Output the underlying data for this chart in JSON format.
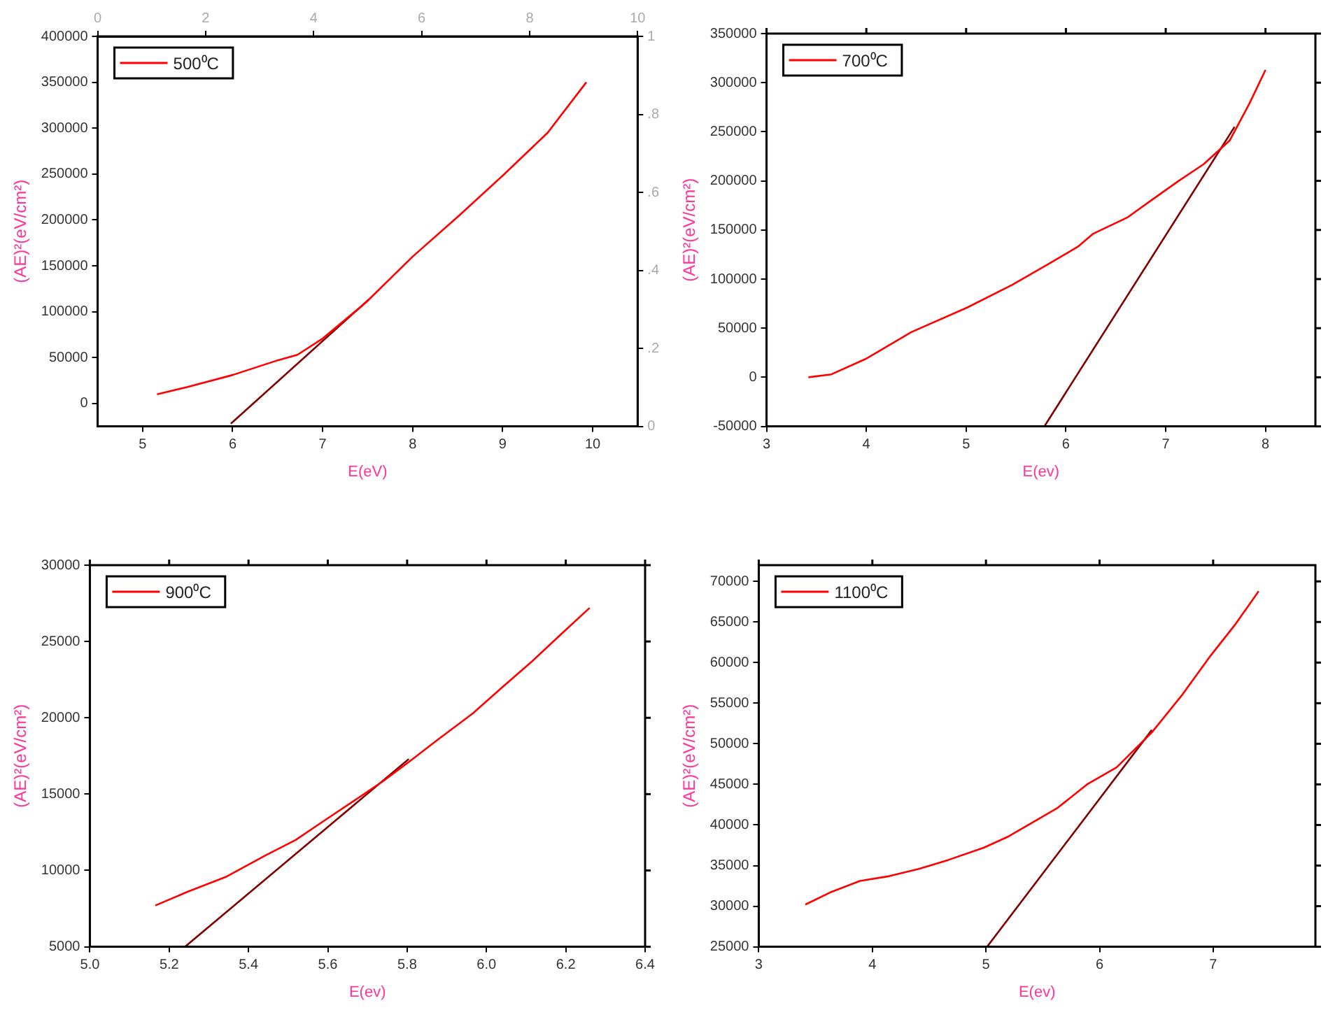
{
  "chart_data": [
    {
      "type": "line",
      "xlabel": "E(eV)",
      "ylabel": "(AE)²(eV/cm²)",
      "legend": "top left",
      "marker": "none",
      "grid": false,
      "xlim": [
        4.5,
        10.5
      ],
      "xticks": [
        5,
        6,
        7,
        8,
        9,
        10
      ],
      "ylim": [
        -25000,
        400000
      ],
      "yticks": [
        0,
        50000,
        100000,
        150000,
        200000,
        250000,
        300000,
        350000,
        400000
      ],
      "x2lim": [
        0,
        10
      ],
      "x2ticks": [
        0,
        2,
        4,
        6,
        8,
        10
      ],
      "y2lim": [
        0,
        1
      ],
      "y2ticks": [
        0,
        {
          "value": 0.2,
          "label": ".2"
        },
        {
          "value": 0.4,
          "label": ".4"
        },
        {
          "value": 0.6,
          "label": ".6"
        },
        {
          "value": 0.8,
          "label": ".8"
        },
        1
      ],
      "series": [
        {
          "name": "500⁰C",
          "color": "#ff0000",
          "x": [
            5.16,
            5.5,
            6.0,
            6.5,
            6.72,
            6.99,
            7.48,
            8.0,
            8.52,
            9.02,
            9.5,
            9.93
          ],
          "values": [
            10000,
            18000,
            31000,
            47000,
            53000,
            70000,
            110000,
            160000,
            205000,
            250000,
            295000,
            350000
          ]
        },
        {
          "color": "#800000",
          "x": [
            5.98,
            7.51
          ],
          "values": [
            -22000,
            113000
          ]
        }
      ]
    },
    {
      "type": "line",
      "xlabel": "E(ev)",
      "ylabel": "(AE)²(eV/cm²)",
      "legend": "top left",
      "marker": "none",
      "grid": false,
      "xlim": [
        3,
        8.5
      ],
      "xticks": [
        3,
        4,
        5,
        6,
        7,
        8
      ],
      "ylim": [
        -50000,
        350000
      ],
      "yticks": [
        -50000,
        0,
        50000,
        100000,
        150000,
        200000,
        250000,
        300000,
        350000
      ],
      "series": [
        {
          "name": "700⁰C",
          "color": "#ff0000",
          "x": [
            3.42,
            3.65,
            4.0,
            4.45,
            5.01,
            5.46,
            5.82,
            6.12,
            6.27,
            6.62,
            6.88,
            7.13,
            7.38,
            7.64,
            7.84,
            8.0
          ],
          "values": [
            0,
            3000,
            19000,
            46000,
            71000,
            94000,
            115000,
            133000,
            146000,
            163000,
            182000,
            200000,
            217000,
            241000,
            279000,
            313000
          ]
        },
        {
          "color": "#800000",
          "x": [
            5.79,
            7.69
          ],
          "values": [
            -49000,
            255000
          ]
        }
      ]
    },
    {
      "type": "line",
      "xlabel": "E(ev)",
      "ylabel": "(AE)²(eV/cm²)",
      "legend": "top left",
      "marker": "none",
      "grid": false,
      "xlim": [
        5.0,
        6.4
      ],
      "xticks": [
        {
          "value": 5,
          "label": "5.0"
        },
        5.2,
        5.4,
        5.6,
        5.8,
        {
          "value": 6,
          "label": "6.0"
        },
        6.2,
        6.4
      ],
      "ylim": [
        5000,
        30000
      ],
      "yticks": [
        5000,
        10000,
        15000,
        20000,
        25000,
        30000
      ],
      "series": [
        {
          "name": "900⁰C",
          "color": "#ff0000",
          "x": [
            5.165,
            5.246,
            5.345,
            5.444,
            5.519,
            5.593,
            5.668,
            5.742,
            5.804,
            5.879,
            5.966,
            6.04,
            6.115,
            6.189,
            6.26
          ],
          "values": [
            7700,
            8600,
            9600,
            11000,
            12000,
            13300,
            14600,
            15900,
            17100,
            18600,
            20300,
            22000,
            23700,
            25500,
            27200
          ]
        },
        {
          "color": "#800000",
          "x": [
            5.24,
            5.804
          ],
          "values": [
            5000,
            17300
          ]
        }
      ]
    },
    {
      "type": "line",
      "xlabel": "E(ev)",
      "ylabel": "(AE)²(eV/cm²)",
      "legend": "top left",
      "marker": "none",
      "grid": false,
      "xlim": [
        3,
        7.9
      ],
      "xticks": [
        3,
        4,
        5,
        6,
        7
      ],
      "ylim": [
        25000,
        72000
      ],
      "yticks": [
        25000,
        30000,
        35000,
        40000,
        45000,
        50000,
        55000,
        60000,
        65000,
        70000
      ],
      "series": [
        {
          "name": "1100⁰C",
          "color": "#ff0000",
          "x": [
            3.41,
            3.63,
            3.89,
            4.15,
            4.41,
            4.67,
            4.98,
            5.2,
            5.41,
            5.63,
            5.89,
            6.15,
            6.46,
            6.72,
            6.98,
            7.2,
            7.4
          ],
          "values": [
            30200,
            31700,
            33100,
            33700,
            34600,
            35700,
            37200,
            38600,
            40300,
            42100,
            45000,
            47100,
            51400,
            55900,
            60900,
            64800,
            68800
          ]
        },
        {
          "color": "#800000",
          "x": [
            5.01,
            6.46
          ],
          "values": [
            25000,
            51700
          ]
        }
      ]
    }
  ]
}
